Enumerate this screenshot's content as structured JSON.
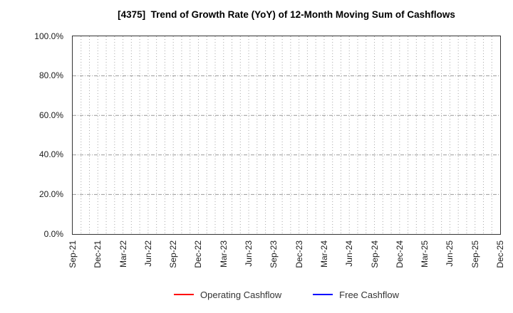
{
  "chart_data": {
    "type": "line",
    "title": "[4375]  Trend of Growth Rate (YoY) of 12-Month Moving Sum of Cashflows",
    "x_tick_labels": [
      "Sep-21",
      "Dec-21",
      "Mar-22",
      "Jun-22",
      "Sep-22",
      "Dec-22",
      "Mar-23",
      "Jun-23",
      "Sep-23",
      "Dec-23",
      "Mar-24",
      "Jun-24",
      "Sep-24",
      "Dec-24",
      "Mar-25",
      "Jun-25",
      "Sep-25",
      "Dec-25"
    ],
    "x_months_per_label": 3,
    "y_ticks": [
      0,
      20,
      40,
      60,
      80,
      100
    ],
    "y_tick_labels": [
      "0.0%",
      "20.0%",
      "40.0%",
      "60.0%",
      "80.0%",
      "100.0%"
    ],
    "ylim": [
      0,
      100
    ],
    "grid": true,
    "vertical_gridlines": "monthly-dotted",
    "horizontal_gridlines": "dash-dot-at-y-ticks",
    "plot_is_empty": true,
    "legend_position": "bottom-center",
    "series": [
      {
        "name": "Operating Cashflow",
        "color": "#ff0000",
        "values": []
      },
      {
        "name": "Free Cashflow",
        "color": "#0000ff",
        "values": []
      }
    ],
    "colors": {
      "background": "#ffffff",
      "plot_border": "#333333",
      "grid_vertical": "#a8a8a8",
      "grid_horizontal": "#999999",
      "title_text": "#000000",
      "tick_label": "#1a1a1a",
      "legend_text": "#333333"
    }
  }
}
